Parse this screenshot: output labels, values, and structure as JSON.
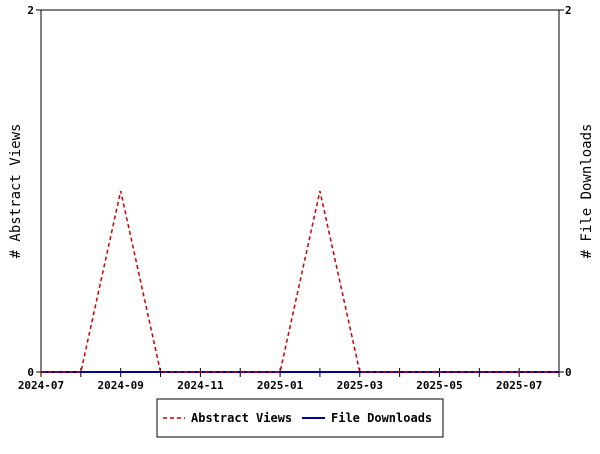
{
  "chart_data": {
    "type": "line",
    "x_axis": {
      "kind": "date",
      "range": [
        "2024-07",
        "2025-08"
      ],
      "tick_labels": [
        "2024-07",
        "2024-09",
        "2024-11",
        "2025-01",
        "2025-03",
        "2025-05",
        "2025-07"
      ]
    },
    "y_left": {
      "label": "# Abstract Views",
      "range": [
        0,
        2
      ],
      "tick_labels": [
        "0",
        "2"
      ]
    },
    "y_right": {
      "label": "# File Downloads",
      "range": [
        0,
        2
      ],
      "tick_labels": [
        "0",
        "2"
      ]
    },
    "series": [
      {
        "name": "Abstract Views",
        "color": "#cc0000",
        "dash": "dashed",
        "axis": "left",
        "points": [
          [
            "2024-07",
            0
          ],
          [
            "2024-08",
            0
          ],
          [
            "2024-09",
            1
          ],
          [
            "2024-10",
            0
          ],
          [
            "2024-11",
            0
          ],
          [
            "2024-12",
            0
          ],
          [
            "2025-01",
            0
          ],
          [
            "2025-02",
            1
          ],
          [
            "2025-03",
            0
          ],
          [
            "2025-04",
            0
          ],
          [
            "2025-05",
            0
          ],
          [
            "2025-06",
            0
          ],
          [
            "2025-07",
            0
          ],
          [
            "2025-08",
            0
          ]
        ]
      },
      {
        "name": "File Downloads",
        "color": "#000099",
        "dash": "solid",
        "axis": "right",
        "points": [
          [
            "2024-07",
            0
          ],
          [
            "2024-08",
            0
          ],
          [
            "2024-09",
            0
          ],
          [
            "2024-10",
            0
          ],
          [
            "2024-11",
            0
          ],
          [
            "2024-12",
            0
          ],
          [
            "2025-01",
            0
          ],
          [
            "2025-02",
            0
          ],
          [
            "2025-03",
            0
          ],
          [
            "2025-04",
            0
          ],
          [
            "2025-05",
            0
          ],
          [
            "2025-06",
            0
          ],
          [
            "2025-07",
            0
          ],
          [
            "2025-08",
            0
          ]
        ]
      }
    ],
    "grid": false,
    "legend_position": "bottom-center"
  }
}
